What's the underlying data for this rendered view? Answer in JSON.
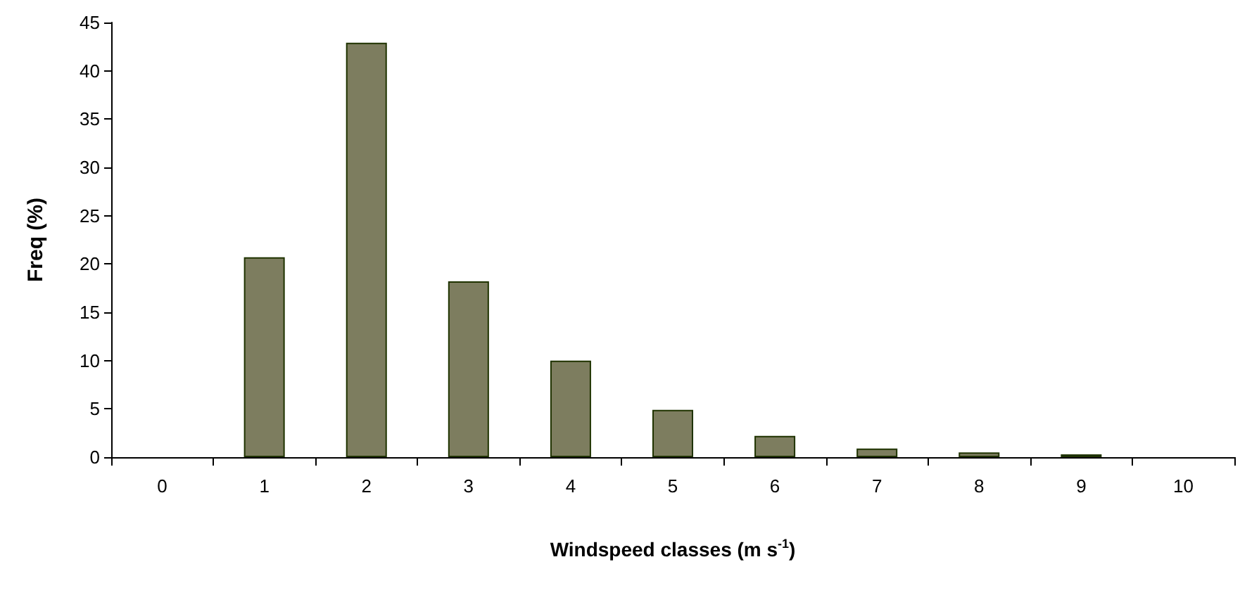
{
  "chart_data": {
    "type": "bar",
    "xlabel": "Windspeed classes (m s$^{-1}$)",
    "ylabel": "Freq (%)",
    "categories": [
      "0",
      "1",
      "2",
      "3",
      "4",
      "5",
      "6",
      "7",
      "8",
      "9",
      "10"
    ],
    "values": [
      0,
      20.7,
      42.9,
      18.2,
      10.0,
      4.9,
      2.2,
      0.9,
      0.5,
      0.3,
      0
    ],
    "color": "#7d7d5f",
    "ylim": [
      0,
      45
    ],
    "yticks": [
      0,
      5,
      10,
      15,
      20,
      25,
      30,
      35,
      40,
      45
    ],
    "grid": false
  }
}
